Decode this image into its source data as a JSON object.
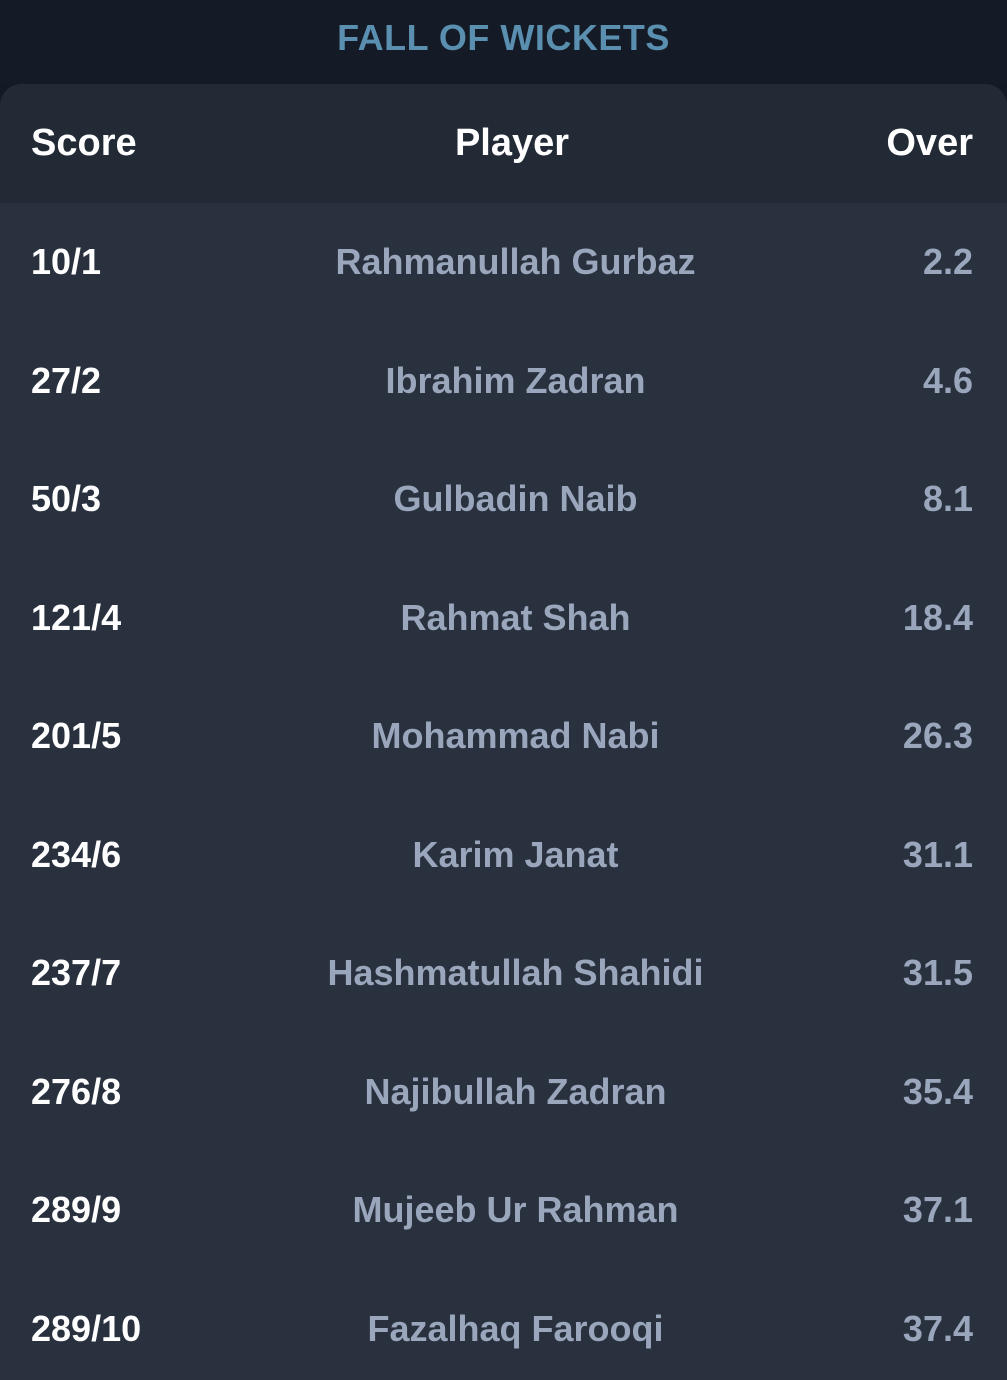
{
  "title": "FALL OF WICKETS",
  "columns": {
    "score": "Score",
    "player": "Player",
    "over": "Over"
  },
  "rows": [
    {
      "score": "10/1",
      "player": "Rahmanullah Gurbaz",
      "over": "2.2"
    },
    {
      "score": "27/2",
      "player": "Ibrahim Zadran",
      "over": "4.6"
    },
    {
      "score": "50/3",
      "player": "Gulbadin Naib",
      "over": "8.1"
    },
    {
      "score": "121/4",
      "player": "Rahmat Shah",
      "over": "18.4"
    },
    {
      "score": "201/5",
      "player": "Mohammad Nabi",
      "over": "26.3"
    },
    {
      "score": "234/6",
      "player": "Karim Janat",
      "over": "31.1"
    },
    {
      "score": "237/7",
      "player": "Hashmatullah Shahidi",
      "over": "31.5"
    },
    {
      "score": "276/8",
      "player": "Najibullah Zadran",
      "over": "35.4"
    },
    {
      "score": "289/9",
      "player": "Mujeeb Ur Rahman",
      "over": "37.1"
    },
    {
      "score": "289/10",
      "player": "Fazalhaq Farooqi",
      "over": "37.4"
    }
  ],
  "colors": {
    "page_background": "#131a26",
    "title": "#5a8fb0",
    "card_background": "#29313f",
    "header_background": "#222a36",
    "score_text": "#ffffff",
    "secondary_text": "#9aa6bb"
  }
}
